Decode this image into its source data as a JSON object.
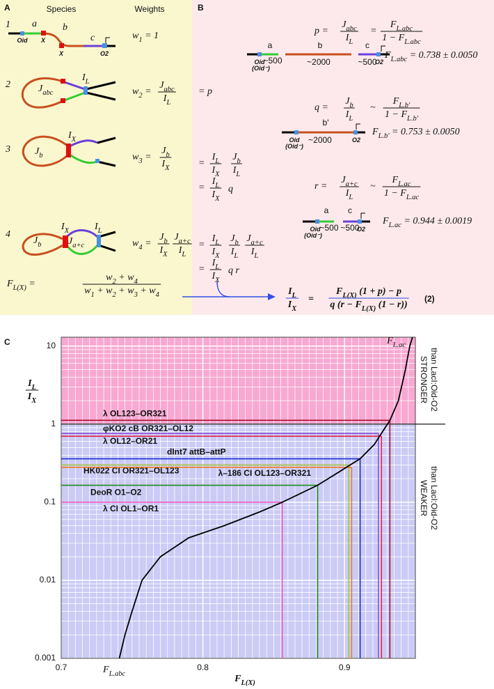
{
  "panel_a": {
    "label": "A",
    "species_header": "Species",
    "weights_header": "Weights",
    "row1": {
      "number": "1",
      "a": "a",
      "b": "b",
      "c": "c",
      "oid": "Oid",
      "x1": "X",
      "x2": "X",
      "o2": "O2",
      "weight": "w_{1} = 1"
    },
    "row2": {
      "number": "2",
      "j": "J_{abc}",
      "i": "I_{L}",
      "w_lhs": "w_{2} =",
      "w": {
        "num": "J_{abc}",
        "den": "I_{L}"
      },
      "step": "= p"
    },
    "row3": {
      "number": "3",
      "i": "I_{X}",
      "j": "J_{b}",
      "w_lhs": "w_{3} =",
      "w": {
        "num": "J_{b}",
        "den": "I_{X}"
      },
      "step1": {
        "eq": "=",
        "f1": {
          "num": "I_{L}",
          "den": "I_{X}"
        },
        "f2": {
          "num": "J_{b}",
          "den": "I_{L}"
        }
      },
      "step2": {
        "eq": "=",
        "f1": {
          "num": "I_{L}",
          "den": "I_{X}"
        },
        "tail": "q"
      }
    },
    "row4": {
      "number": "4",
      "ix": "I_{X}",
      "il": "I_{L}",
      "jb": "J_{b}",
      "jac": "J_{a+c}",
      "w_lhs": "w_{4} =",
      "w1": {
        "num": "J_{b}",
        "den": "I_{X}"
      },
      "w2": {
        "num": "J_{a+c}",
        "den": "I_{L}"
      },
      "step1": {
        "eq": "=",
        "f1": {
          "num": "I_{L}",
          "den": "I_{X}"
        },
        "f2": {
          "num": "J_{b}",
          "den": "I_{L}"
        },
        "f3": {
          "num": "J_{a+c}",
          "den": "I_{L}"
        }
      },
      "step2": {
        "eq": "=",
        "f1": {
          "num": "I_{L}",
          "den": "I_{X}"
        },
        "tail": "q  r"
      }
    },
    "f_lx": {
      "lhs": "F_{L(X)} =",
      "frac": {
        "num": "w_{2} + w_{4}",
        "den": "w_{1} + w_{2} + w_{3} + w_{4}"
      }
    }
  },
  "panel_b": {
    "label": "B",
    "p": {
      "lhs": "p =",
      "f1": {
        "num": "J_{abc}",
        "den": "I_{L}"
      },
      "rel": "=",
      "f2": {
        "num": "F_{L.abc}",
        "den": "1 − F_{L.abc}"
      },
      "labels": {
        "a": "a",
        "b": "b",
        "c": "c",
        "oid": "Oid",
        "oid_minus": "(Oid⁻)",
        "len_a": "~500",
        "len_b": "~2000",
        "len_c": "~500",
        "o2": "O2"
      },
      "value": "F_{L.abc} = 0.738 ± 0.0050"
    },
    "q": {
      "lhs": "q =",
      "f1": {
        "num": "J_{b}",
        "den": "I_{L}"
      },
      "rel": "~",
      "f2": {
        "num": "F_{L.b'}",
        "den": "1 − F_{L.b'}"
      },
      "labels": {
        "b": "b'",
        "oid": "Oid",
        "oid_minus": "(Oid⁻)",
        "len_b": "~2000",
        "o2": "O2"
      },
      "value": "F_{L.b'} = 0.753 ± 0.0050"
    },
    "r": {
      "lhs": "r =",
      "f1": {
        "num": "J_{a+c}",
        "den": "I_{L}"
      },
      "rel": "~",
      "f2": {
        "num": "F_{L.ac}",
        "den": "1 − F_{L.ac}"
      },
      "labels": {
        "a": "a",
        "c": "c",
        "oid": "Oid",
        "oid_minus": "(Oid⁻)",
        "len_a": "~500",
        "len_c": "~500",
        "o2": "O2"
      },
      "value": "F_{L.ac} = 0.944 ± 0.0019"
    },
    "eq2": {
      "lhs": {
        "num": "I_{L}",
        "den": "I_{X}"
      },
      "rel": "=",
      "rhs": {
        "num": "F_{L(X)} (1 + p) − p",
        "den": "q (r − F_{L(X)} (1 − r))"
      },
      "number": "(2)"
    }
  },
  "chart_data": {
    "type": "line",
    "panel_label": "C",
    "ylabel": {
      "num": "I_{L}",
      "den": "I_{X}"
    },
    "xlabel": "F_{L(X)}",
    "xlim": [
      0.7,
      0.95
    ],
    "xticks": [
      0.7,
      0.8,
      0.9
    ],
    "ylim": [
      0.001,
      13
    ],
    "yticks": [
      0.001,
      0.01,
      0.1,
      1,
      10
    ],
    "ylog": true,
    "grid": true,
    "series": [
      {
        "color": "#000000",
        "x": [
          0.741,
          0.745,
          0.75,
          0.757,
          0.77,
          0.79,
          0.815,
          0.84,
          0.856,
          0.881,
          0.897,
          0.911,
          0.921,
          0.932,
          0.938,
          0.943,
          0.946,
          0.948
        ],
        "values": [
          0.001,
          0.002,
          0.004,
          0.01,
          0.02,
          0.035,
          0.05,
          0.075,
          0.1,
          0.165,
          0.25,
          0.36,
          0.55,
          1.12,
          2,
          5,
          10,
          13
        ]
      }
    ],
    "thresholds": [
      {
        "name": "λ OL123–OR321",
        "color": "#a8102c",
        "x": 0.932,
        "y": 1.12
      },
      {
        "name": "φKO2 cB OR321–OL12",
        "color": "#8a4fd8",
        "x": 0.924,
        "y": 0.76
      },
      {
        "name": "λ OL12–OR21",
        "color": "#e0204a",
        "x": 0.926,
        "y": 0.7
      },
      {
        "name": "dInt7 attB–attP",
        "color": "#1a2fd0",
        "x": 0.911,
        "y": 0.36
      },
      {
        "name": "HK022 CI OR321–OL123",
        "color": "#a4c43a",
        "x": 0.903,
        "y": 0.3
      },
      {
        "name": "λ–186 CI OL123–OR321",
        "color": "#f07820",
        "x": 0.905,
        "y": 0.28
      },
      {
        "name": "DeoR O1–O2",
        "color": "#1e8a1e",
        "x": 0.881,
        "y": 0.165
      },
      {
        "name": "λ CI OL1–OR1",
        "color": "#f050c0",
        "x": 0.856,
        "y": 0.1
      }
    ],
    "curve_labels": {
      "top": "F_{L.ac}",
      "bottom": "F_{L.abc}"
    },
    "boundary": 1,
    "regions": [
      {
        "label": "STRONGER",
        "sublabel": "than LacI:Oid-O2",
        "color": "#e0202a",
        "fill": "#f8a8d2"
      },
      {
        "label": "WEAKER",
        "sublabel": "than LacI:Oid-O2",
        "color": "#2030c0",
        "fill": "#cbcbf6"
      }
    ]
  }
}
